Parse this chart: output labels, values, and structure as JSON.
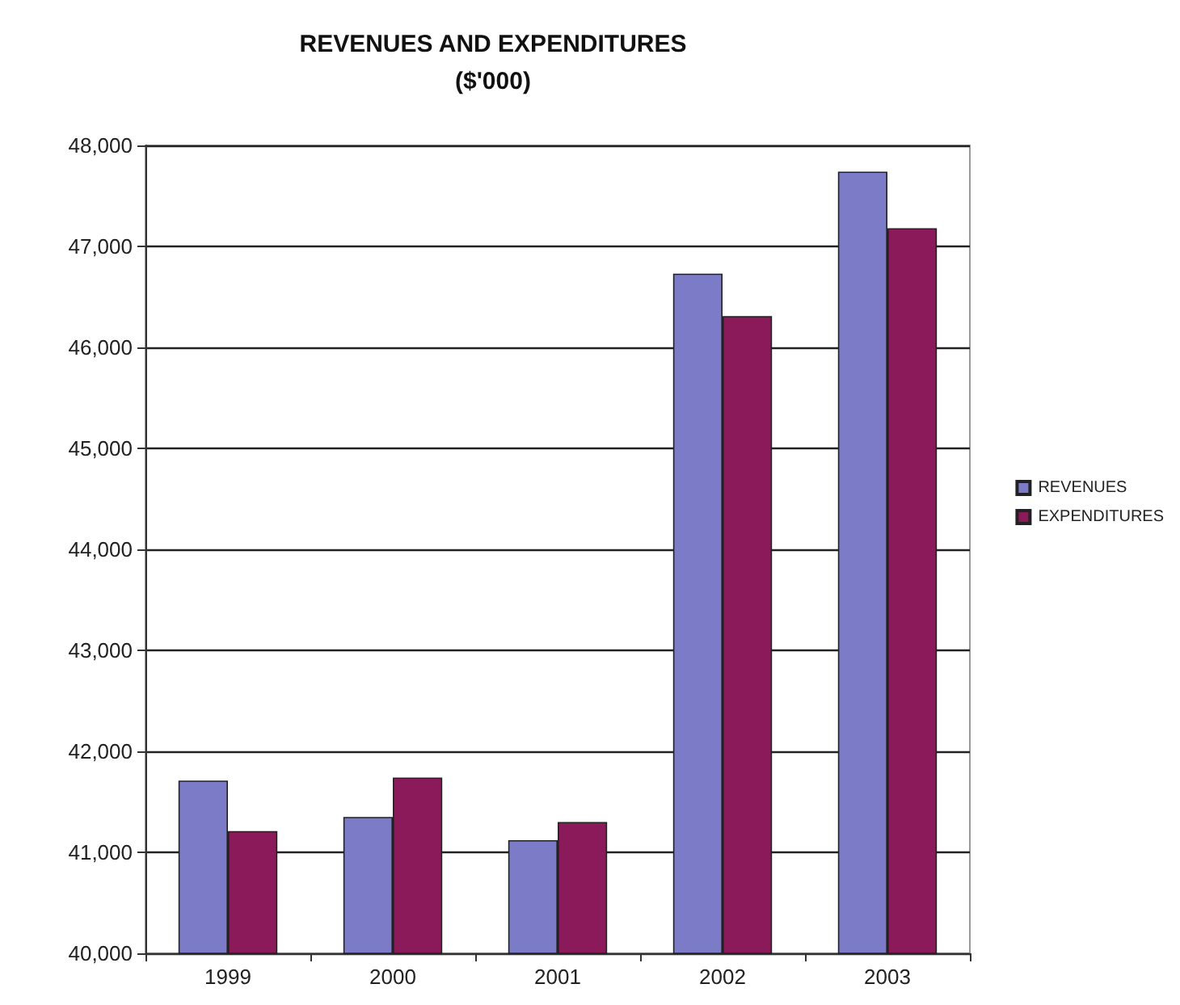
{
  "chart_data": {
    "type": "bar",
    "title": "REVENUES AND EXPENDITURES",
    "subtitle": "($'000)",
    "categories": [
      "1999",
      "2000",
      "2001",
      "2002",
      "2003"
    ],
    "series": [
      {
        "name": "REVENUES",
        "color": "#7b7bc8",
        "values": [
          41710,
          41350,
          41120,
          46730,
          47740
        ]
      },
      {
        "name": "EXPENDITURES",
        "color": "#8b1a5a",
        "values": [
          41210,
          41740,
          41300,
          46310,
          47180
        ]
      }
    ],
    "ylim": [
      40000,
      48000
    ],
    "yticks": [
      {
        "value": 40000,
        "label": "40,000"
      },
      {
        "value": 41000,
        "label": "41,000"
      },
      {
        "value": 42000,
        "label": "42,000"
      },
      {
        "value": 43000,
        "label": "43,000"
      },
      {
        "value": 44000,
        "label": "44,000"
      },
      {
        "value": 45000,
        "label": "45,000"
      },
      {
        "value": 46000,
        "label": "46,000"
      },
      {
        "value": 47000,
        "label": "47,000"
      },
      {
        "value": 48000,
        "label": "48,000"
      }
    ],
    "grid": "y",
    "legend": "right"
  }
}
